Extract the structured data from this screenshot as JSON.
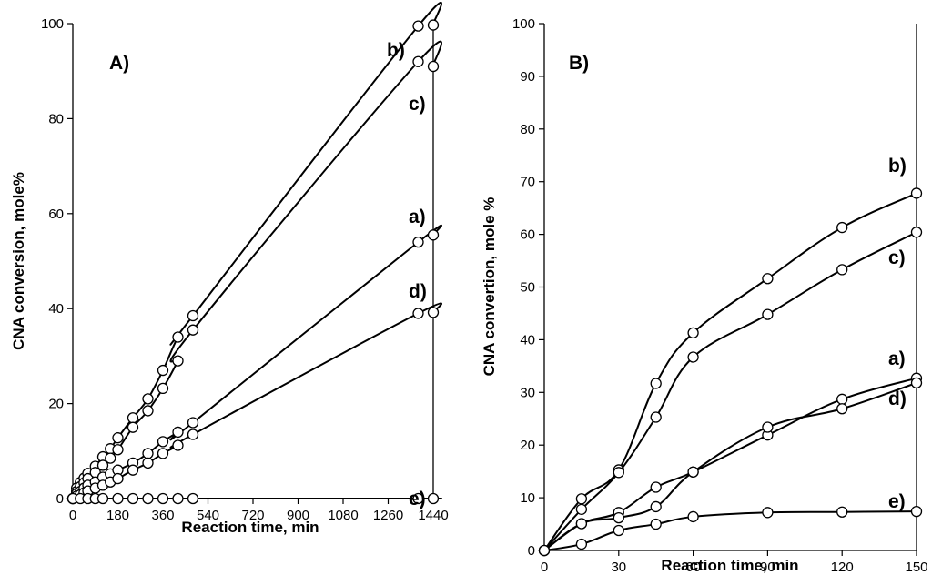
{
  "chart_data": [
    {
      "type": "line",
      "panel_label": "A)",
      "xlabel": "Reaction time, min",
      "ylabel": "CNA conversion, mole%",
      "xlim": [
        0,
        1440
      ],
      "ylim": [
        0,
        100
      ],
      "xticks": [
        0,
        180,
        360,
        540,
        720,
        900,
        1080,
        1260,
        1440
      ],
      "yticks": [
        0,
        20,
        40,
        60,
        80,
        100
      ],
      "grid": false,
      "series": [
        {
          "name": "b)",
          "x": [
            0,
            15,
            30,
            45,
            60,
            90,
            120,
            150,
            180,
            240,
            300,
            360,
            420,
            480,
            1380,
            1440
          ],
          "y": [
            0,
            2.2,
            3.4,
            4.3,
            5.3,
            6.8,
            8.8,
            10.5,
            12.8,
            17.0,
            21.0,
            27.0,
            34.0,
            38.5,
            99.5,
            99.7
          ]
        },
        {
          "name": "c)",
          "x": [
            0,
            15,
            30,
            45,
            60,
            90,
            120,
            150,
            180,
            240,
            300,
            360,
            420,
            480,
            1380,
            1440
          ],
          "y": [
            0,
            1.5,
            2.5,
            3.3,
            4.2,
            5.5,
            7.0,
            8.5,
            10.3,
            15.0,
            18.5,
            23.2,
            29.0,
            35.5,
            92.0,
            91.0
          ]
        },
        {
          "name": "a)",
          "x": [
            0,
            15,
            30,
            45,
            60,
            90,
            120,
            150,
            180,
            240,
            300,
            360,
            420,
            480,
            1380,
            1440
          ],
          "y": [
            0,
            1.0,
            1.5,
            2.2,
            2.8,
            3.5,
            4.5,
            5.2,
            6.0,
            7.5,
            9.5,
            12.0,
            14.0,
            16.0,
            54.0,
            55.5
          ]
        },
        {
          "name": "d)",
          "x": [
            0,
            15,
            30,
            45,
            60,
            90,
            120,
            150,
            180,
            240,
            300,
            360,
            420,
            480,
            1380,
            1440
          ],
          "y": [
            0,
            0.5,
            0.8,
            1.2,
            1.6,
            2.2,
            2.8,
            3.5,
            4.2,
            6.0,
            7.5,
            9.5,
            11.2,
            13.5,
            39.0,
            39.2
          ]
        },
        {
          "name": "e)",
          "x": [
            0,
            30,
            60,
            90,
            120,
            180,
            240,
            300,
            360,
            420,
            480,
            1380,
            1440
          ],
          "y": [
            0,
            0,
            0,
            0,
            0,
            0,
            0,
            0,
            0,
            0,
            0,
            0,
            0
          ]
        }
      ]
    },
    {
      "type": "line",
      "panel_label": "B)",
      "xlabel": "Reaction time, min",
      "ylabel": "CNA convertion, mole %",
      "xlim": [
        0,
        150
      ],
      "ylim": [
        0,
        100
      ],
      "xticks": [
        0,
        30,
        60,
        90,
        120,
        150
      ],
      "yticks": [
        0,
        10,
        20,
        30,
        40,
        50,
        60,
        70,
        80,
        90,
        100
      ],
      "grid": false,
      "series": [
        {
          "name": "b)",
          "x": [
            0,
            15,
            30,
            45,
            60,
            90,
            120,
            150
          ],
          "y": [
            0,
            9.8,
            15.3,
            31.7,
            41.3,
            51.6,
            61.3,
            67.8
          ]
        },
        {
          "name": "c)",
          "x": [
            0,
            15,
            30,
            45,
            60,
            90,
            120,
            150
          ],
          "y": [
            0,
            7.8,
            14.8,
            25.3,
            36.7,
            44.8,
            53.3,
            60.4
          ]
        },
        {
          "name": "a)",
          "x": [
            0,
            15,
            30,
            45,
            60,
            90,
            120,
            150
          ],
          "y": [
            0,
            5.1,
            7.2,
            12.0,
            14.9,
            21.9,
            28.7,
            32.7
          ]
        },
        {
          "name": "d)",
          "x": [
            0,
            15,
            30,
            45,
            60,
            90,
            120,
            150
          ],
          "y": [
            0,
            5.1,
            6.2,
            8.3,
            14.9,
            23.4,
            26.9,
            31.8
          ]
        },
        {
          "name": "e)",
          "x": [
            0,
            15,
            30,
            45,
            60,
            90,
            120,
            150
          ],
          "y": [
            0,
            1.2,
            3.8,
            5.0,
            6.4,
            7.2,
            7.3,
            7.4
          ]
        }
      ]
    }
  ]
}
